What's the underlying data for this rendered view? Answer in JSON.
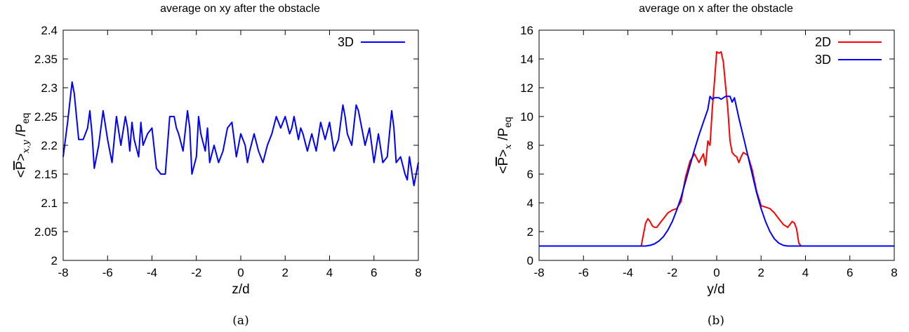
{
  "chart_data": [
    {
      "type": "line",
      "title": "average on xy after the obstacle",
      "xlabel": "z/d",
      "ylabel": "<P̄>x,y /Peq",
      "ylabel_parts": {
        "lt": "<",
        "pbar": "P",
        "gt": ">",
        "sub": "x,y",
        "slash": " /P",
        "eq": "eq"
      },
      "xlim": [
        -8,
        8
      ],
      "ylim": [
        2.0,
        2.4
      ],
      "xticks": [
        -8,
        -6,
        -4,
        -2,
        0,
        2,
        4,
        6,
        8
      ],
      "yticks": [
        2,
        2.05,
        2.1,
        2.15,
        2.2,
        2.25,
        2.3,
        2.35,
        2.4
      ],
      "ytick_labels": [
        "2",
        "2.05",
        "2.1",
        "2.15",
        "2.2",
        "2.25",
        "2.3",
        "2.35",
        "2.4"
      ],
      "grid": false,
      "legend": "top-right",
      "caption": "(a)",
      "series": [
        {
          "name": "3D",
          "color": "#0000ff",
          "x": [
            -8.0,
            -7.8,
            -7.6,
            -7.5,
            -7.3,
            -7.1,
            -6.9,
            -6.8,
            -6.7,
            -6.6,
            -6.4,
            -6.2,
            -6.0,
            -5.9,
            -5.8,
            -5.6,
            -5.4,
            -5.2,
            -5.1,
            -5.0,
            -4.9,
            -4.8,
            -4.6,
            -4.5,
            -4.4,
            -4.2,
            -4.0,
            -3.8,
            -3.6,
            -3.4,
            -3.2,
            -3.0,
            -2.9,
            -2.8,
            -2.6,
            -2.4,
            -2.3,
            -2.2,
            -2.0,
            -1.9,
            -1.8,
            -1.6,
            -1.5,
            -1.4,
            -1.2,
            -1.0,
            -0.8,
            -0.6,
            -0.4,
            -0.2,
            0.0,
            0.2,
            0.3,
            0.4,
            0.6,
            0.8,
            1.0,
            1.2,
            1.4,
            1.6,
            1.7,
            1.8,
            2.0,
            2.2,
            2.3,
            2.4,
            2.6,
            2.7,
            2.8,
            3.0,
            3.2,
            3.4,
            3.6,
            3.8,
            4.0,
            4.2,
            4.4,
            4.6,
            4.7,
            4.8,
            5.0,
            5.2,
            5.3,
            5.4,
            5.6,
            5.8,
            6.0,
            6.2,
            6.4,
            6.6,
            6.8,
            6.9,
            7.0,
            7.2,
            7.4,
            7.5,
            7.6,
            7.8,
            8.0
          ],
          "y": [
            2.18,
            2.24,
            2.31,
            2.29,
            2.21,
            2.21,
            2.23,
            2.26,
            2.22,
            2.16,
            2.2,
            2.26,
            2.21,
            2.19,
            2.17,
            2.25,
            2.2,
            2.25,
            2.23,
            2.19,
            2.24,
            2.21,
            2.18,
            2.24,
            2.2,
            2.22,
            2.23,
            2.16,
            2.15,
            2.15,
            2.25,
            2.25,
            2.23,
            2.22,
            2.19,
            2.26,
            2.23,
            2.15,
            2.18,
            2.25,
            2.22,
            2.19,
            2.23,
            2.17,
            2.2,
            2.17,
            2.19,
            2.23,
            2.24,
            2.18,
            2.22,
            2.2,
            2.17,
            2.19,
            2.22,
            2.19,
            2.17,
            2.2,
            2.22,
            2.25,
            2.24,
            2.23,
            2.25,
            2.22,
            2.23,
            2.25,
            2.21,
            2.23,
            2.22,
            2.19,
            2.22,
            2.19,
            2.24,
            2.21,
            2.24,
            2.19,
            2.21,
            2.27,
            2.25,
            2.22,
            2.2,
            2.27,
            2.26,
            2.24,
            2.2,
            2.23,
            2.17,
            2.22,
            2.17,
            2.18,
            2.26,
            2.23,
            2.17,
            2.18,
            2.15,
            2.14,
            2.18,
            2.13,
            2.17
          ]
        }
      ]
    },
    {
      "type": "line",
      "title": "average on x after the obstacle",
      "xlabel": "y/d",
      "ylabel": "<P̄>x /Peq",
      "ylabel_parts": {
        "lt": "<",
        "pbar": "P",
        "gt": ">",
        "sub": "x",
        "slash": " /P",
        "eq": "eq"
      },
      "xlim": [
        -8,
        8
      ],
      "ylim": [
        0,
        16
      ],
      "xticks": [
        -8,
        -6,
        -4,
        -2,
        0,
        2,
        4,
        6,
        8
      ],
      "yticks": [
        0,
        2,
        4,
        6,
        8,
        10,
        12,
        14,
        16
      ],
      "ytick_labels": [
        "0",
        "2",
        "4",
        "6",
        "8",
        "10",
        "12",
        "14",
        "16"
      ],
      "grid": false,
      "legend": "top-right",
      "caption": "(b)",
      "series": [
        {
          "name": "2D",
          "color": "#ff0000",
          "x": [
            -8.0,
            -3.4,
            -3.3,
            -3.2,
            -3.1,
            -3.0,
            -2.9,
            -2.8,
            -2.7,
            -2.6,
            -2.5,
            -2.4,
            -2.2,
            -2.0,
            -1.8,
            -1.6,
            -1.5,
            -1.4,
            -1.2,
            -1.0,
            -0.8,
            -0.6,
            -0.5,
            -0.4,
            -0.3,
            -0.2,
            -0.1,
            0.0,
            0.1,
            0.2,
            0.3,
            0.4,
            0.5,
            0.6,
            0.7,
            0.8,
            0.9,
            1.0,
            1.1,
            1.2,
            1.4,
            1.6,
            1.8,
            2.0,
            2.2,
            2.4,
            2.6,
            2.8,
            3.0,
            3.2,
            3.3,
            3.4,
            3.5,
            3.6,
            3.7,
            3.8,
            8.0
          ],
          "y": [
            1.0,
            1.0,
            1.8,
            2.6,
            2.9,
            2.7,
            2.4,
            2.3,
            2.3,
            2.5,
            2.7,
            2.9,
            3.3,
            3.5,
            3.6,
            4.1,
            5.0,
            5.8,
            6.9,
            7.4,
            6.8,
            7.4,
            6.6,
            8.3,
            8.0,
            10.5,
            12.4,
            14.5,
            14.4,
            14.5,
            13.8,
            12.1,
            10.6,
            8.3,
            7.5,
            7.3,
            7.2,
            6.8,
            7.2,
            7.5,
            7.3,
            6.3,
            4.8,
            3.8,
            3.7,
            3.6,
            3.3,
            2.9,
            2.5,
            2.3,
            2.5,
            2.7,
            2.6,
            2.2,
            1.2,
            1.0,
            1.0
          ]
        },
        {
          "name": "3D",
          "color": "#0000ff",
          "x": [
            -8.0,
            -3.2,
            -3.0,
            -2.8,
            -2.6,
            -2.4,
            -2.2,
            -2.0,
            -1.8,
            -1.6,
            -1.4,
            -1.2,
            -1.0,
            -0.8,
            -0.6,
            -0.4,
            -0.3,
            -0.2,
            -0.1,
            0.0,
            0.1,
            0.2,
            0.3,
            0.4,
            0.5,
            0.6,
            0.7,
            0.8,
            0.9,
            1.0,
            1.2,
            1.4,
            1.6,
            1.8,
            2.0,
            2.2,
            2.4,
            2.6,
            2.8,
            3.0,
            3.2,
            8.0
          ],
          "y": [
            1.0,
            1.0,
            1.05,
            1.15,
            1.35,
            1.65,
            2.1,
            2.7,
            3.5,
            4.4,
            5.5,
            6.6,
            7.7,
            8.7,
            9.6,
            10.5,
            11.4,
            11.2,
            11.3,
            11.3,
            11.3,
            11.2,
            11.3,
            11.4,
            11.4,
            11.4,
            11.0,
            11.3,
            10.6,
            9.9,
            8.6,
            7.3,
            6.0,
            4.7,
            3.6,
            2.7,
            2.0,
            1.5,
            1.2,
            1.05,
            1.0,
            1.0
          ]
        }
      ]
    }
  ]
}
